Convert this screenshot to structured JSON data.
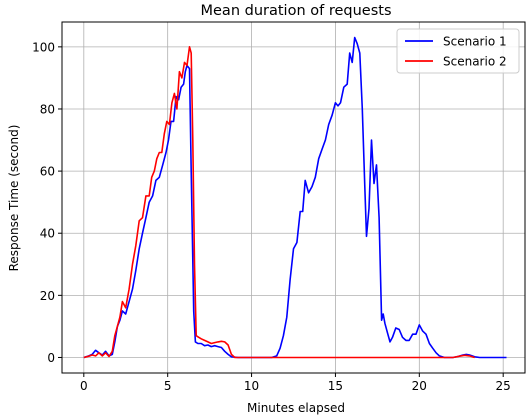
{
  "chart_data": {
    "type": "line",
    "title": "Mean duration of requests",
    "xlabel": "Minutes elapsed",
    "ylabel": "Response Time (second)",
    "xlim": [
      -1.3,
      26.3
    ],
    "ylim": [
      -5,
      108
    ],
    "xticks": [
      0,
      5,
      10,
      15,
      20,
      25
    ],
    "yticks": [
      0,
      20,
      40,
      60,
      80,
      100
    ],
    "grid": true,
    "legend": "top-right",
    "series": [
      {
        "name": "Scenario 1",
        "color": "#0000ff",
        "points": [
          [
            0,
            0
          ],
          [
            0.3,
            0.5
          ],
          [
            0.5,
            1
          ],
          [
            0.7,
            2.3
          ],
          [
            0.9,
            1.5
          ],
          [
            1.1,
            0.8
          ],
          [
            1.3,
            2
          ],
          [
            1.5,
            0.5
          ],
          [
            1.7,
            1
          ],
          [
            1.85,
            5
          ],
          [
            2.0,
            10
          ],
          [
            2.15,
            12
          ],
          [
            2.3,
            15
          ],
          [
            2.5,
            14
          ],
          [
            2.7,
            18
          ],
          [
            2.9,
            22
          ],
          [
            3.1,
            28
          ],
          [
            3.3,
            35
          ],
          [
            3.5,
            40
          ],
          [
            3.7,
            45
          ],
          [
            3.9,
            50
          ],
          [
            4.1,
            52
          ],
          [
            4.3,
            57
          ],
          [
            4.5,
            58
          ],
          [
            4.7,
            62
          ],
          [
            4.9,
            66
          ],
          [
            5.05,
            70
          ],
          [
            5.2,
            76
          ],
          [
            5.35,
            76
          ],
          [
            5.5,
            84
          ],
          [
            5.65,
            83
          ],
          [
            5.8,
            87
          ],
          [
            5.95,
            88
          ],
          [
            6.05,
            92
          ],
          [
            6.15,
            94
          ],
          [
            6.3,
            93
          ],
          [
            6.4,
            60
          ],
          [
            6.55,
            15
          ],
          [
            6.65,
            5
          ],
          [
            6.8,
            4.5
          ],
          [
            7.0,
            4.5
          ],
          [
            7.2,
            3.8
          ],
          [
            7.4,
            4
          ],
          [
            7.6,
            3.5
          ],
          [
            7.8,
            3.8
          ],
          [
            8.0,
            3.5
          ],
          [
            8.2,
            3.2
          ],
          [
            8.4,
            2
          ],
          [
            8.6,
            1
          ],
          [
            8.8,
            0.2
          ],
          [
            9.2,
            0
          ],
          [
            10,
            0
          ],
          [
            10.8,
            0
          ],
          [
            11.2,
            0
          ],
          [
            11.5,
            0.5
          ],
          [
            11.7,
            3
          ],
          [
            11.9,
            7
          ],
          [
            12.1,
            13
          ],
          [
            12.3,
            25
          ],
          [
            12.5,
            35
          ],
          [
            12.7,
            37
          ],
          [
            12.9,
            47
          ],
          [
            13.05,
            47
          ],
          [
            13.2,
            57
          ],
          [
            13.4,
            53
          ],
          [
            13.6,
            55
          ],
          [
            13.8,
            58
          ],
          [
            14.0,
            64
          ],
          [
            14.2,
            67
          ],
          [
            14.4,
            70
          ],
          [
            14.6,
            75
          ],
          [
            14.8,
            78
          ],
          [
            15.0,
            82
          ],
          [
            15.15,
            81
          ],
          [
            15.3,
            82
          ],
          [
            15.5,
            87
          ],
          [
            15.7,
            88
          ],
          [
            15.85,
            98
          ],
          [
            16.0,
            95
          ],
          [
            16.15,
            103
          ],
          [
            16.3,
            101
          ],
          [
            16.45,
            98
          ],
          [
            16.6,
            80
          ],
          [
            16.75,
            55
          ],
          [
            16.85,
            39
          ],
          [
            17.0,
            48
          ],
          [
            17.15,
            70
          ],
          [
            17.3,
            56
          ],
          [
            17.45,
            62
          ],
          [
            17.6,
            45
          ],
          [
            17.75,
            12
          ],
          [
            17.85,
            14
          ],
          [
            17.95,
            11
          ],
          [
            18.1,
            8
          ],
          [
            18.25,
            5
          ],
          [
            18.4,
            6.5
          ],
          [
            18.6,
            9.5
          ],
          [
            18.8,
            9
          ],
          [
            19.0,
            6.5
          ],
          [
            19.2,
            5.5
          ],
          [
            19.4,
            5.5
          ],
          [
            19.6,
            7.5
          ],
          [
            19.8,
            7.5
          ],
          [
            20.0,
            10.5
          ],
          [
            20.2,
            8.5
          ],
          [
            20.4,
            7.5
          ],
          [
            20.6,
            4.5
          ],
          [
            20.8,
            3
          ],
          [
            21.0,
            1.5
          ],
          [
            21.2,
            0.5
          ],
          [
            21.5,
            0
          ],
          [
            22.0,
            0
          ],
          [
            22.3,
            0.3
          ],
          [
            22.6,
            0.8
          ],
          [
            22.8,
            1
          ],
          [
            23.0,
            0.8
          ],
          [
            23.3,
            0.2
          ],
          [
            23.6,
            0
          ],
          [
            24.5,
            0
          ],
          [
            25.2,
            0
          ]
        ]
      },
      {
        "name": "Scenario 2",
        "color": "#ff0000",
        "points": [
          [
            0,
            0
          ],
          [
            0.3,
            0.4
          ],
          [
            0.5,
            0.8
          ],
          [
            0.7,
            0.5
          ],
          [
            0.9,
            1.5
          ],
          [
            1.1,
            0.5
          ],
          [
            1.3,
            1.5
          ],
          [
            1.5,
            0.3
          ],
          [
            1.7,
            2
          ],
          [
            1.85,
            7
          ],
          [
            2.0,
            10
          ],
          [
            2.15,
            13
          ],
          [
            2.3,
            18
          ],
          [
            2.5,
            16
          ],
          [
            2.7,
            22
          ],
          [
            2.9,
            30
          ],
          [
            3.1,
            36
          ],
          [
            3.3,
            44
          ],
          [
            3.5,
            45
          ],
          [
            3.7,
            52
          ],
          [
            3.9,
            52
          ],
          [
            4.05,
            58
          ],
          [
            4.2,
            60
          ],
          [
            4.35,
            64
          ],
          [
            4.5,
            66
          ],
          [
            4.65,
            66
          ],
          [
            4.8,
            72
          ],
          [
            4.95,
            76
          ],
          [
            5.1,
            75
          ],
          [
            5.25,
            82
          ],
          [
            5.4,
            85
          ],
          [
            5.55,
            80
          ],
          [
            5.7,
            92
          ],
          [
            5.85,
            90
          ],
          [
            6.0,
            95
          ],
          [
            6.15,
            94
          ],
          [
            6.3,
            100
          ],
          [
            6.4,
            98
          ],
          [
            6.5,
            70
          ],
          [
            6.6,
            30
          ],
          [
            6.7,
            7
          ],
          [
            6.85,
            6.5
          ],
          [
            7.0,
            6
          ],
          [
            7.2,
            5.5
          ],
          [
            7.4,
            5
          ],
          [
            7.6,
            4.5
          ],
          [
            7.8,
            4.8
          ],
          [
            8.0,
            5
          ],
          [
            8.2,
            5.2
          ],
          [
            8.4,
            5
          ],
          [
            8.6,
            4
          ],
          [
            8.8,
            1
          ],
          [
            9.0,
            0
          ],
          [
            10,
            0
          ],
          [
            11,
            0
          ],
          [
            12,
            0
          ],
          [
            13,
            0
          ],
          [
            14,
            0
          ],
          [
            15,
            0
          ],
          [
            16,
            0
          ],
          [
            17,
            0
          ],
          [
            18,
            0
          ],
          [
            19,
            0
          ],
          [
            20,
            0
          ],
          [
            21,
            0
          ],
          [
            22.0,
            0
          ],
          [
            22.4,
            0.4
          ],
          [
            22.7,
            0.7
          ],
          [
            23.0,
            0.5
          ],
          [
            23.3,
            0
          ]
        ]
      }
    ]
  }
}
